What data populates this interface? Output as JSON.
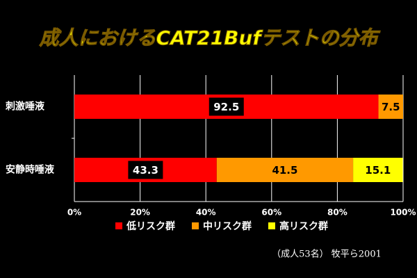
{
  "chart_data": {
    "type": "stacked-barh",
    "title": "成人におけるCAT21Bufテストの分布",
    "categories": [
      "刺激唾液",
      "安静時唾液"
    ],
    "series": [
      {
        "name": "低リスク群",
        "color": "#ff0000",
        "values": [
          92.5,
          43.3
        ]
      },
      {
        "name": "中リスク群",
        "color": "#ff9900",
        "values": [
          7.5,
          41.5
        ]
      },
      {
        "name": "高リスク群",
        "color": "#ffff00",
        "values": [
          0,
          15.1
        ]
      }
    ],
    "xlim": [
      0,
      100
    ],
    "xticks": [
      {
        "value": 0,
        "label": "0%"
      },
      {
        "value": 20,
        "label": "20%"
      },
      {
        "value": 40,
        "label": "40%"
      },
      {
        "value": 60,
        "label": "60%"
      },
      {
        "value": 80,
        "label": "80%"
      },
      {
        "value": 100,
        "label": "100%"
      }
    ],
    "grid": true,
    "legend": "bottom",
    "note": "（成人53名） 牧平ら2001"
  }
}
